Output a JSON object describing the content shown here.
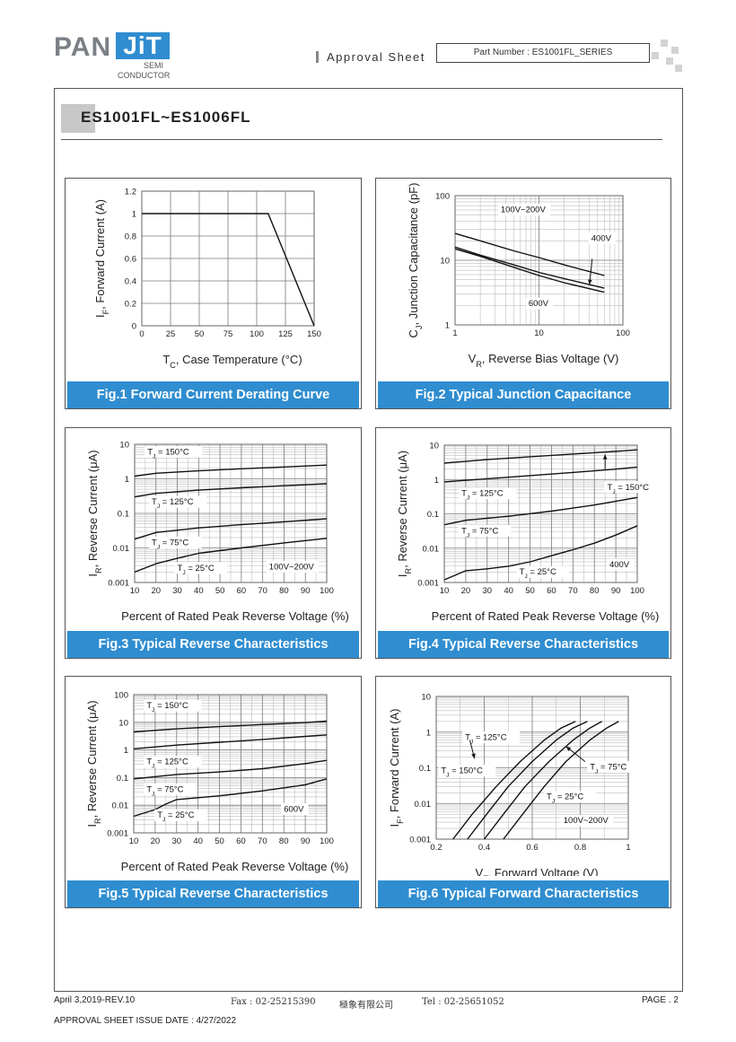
{
  "header": {
    "logo_main": "PAN",
    "logo_accent": "JiT",
    "logo_sub1": "SEMI",
    "logo_sub2": "CONDUCTOR",
    "approval": "Approval Sheet",
    "part_number": "Part Number : ES1001FL_SERIES"
  },
  "doc_title": "ES1001FL~ES1006FL",
  "footer": {
    "date": "April 3,2019-REV.10",
    "fax": "Fax : 02-25215390",
    "company": "極象有限公司",
    "tel": "Tel : 02-25651052",
    "page": "PAGE . 2",
    "issue": "APPROVAL SHEET ISSUE DATE : 4/27/2022"
  },
  "colors": {
    "accent": "#2f8dd0",
    "line": "#222222"
  },
  "chart_data": [
    {
      "id": "fig1",
      "type": "line",
      "title": "Fig.1 Forward Current Derating Curve",
      "xlabel": "TC, Case Temperature (°C)",
      "ylabel": "IF, Forward Current (A)",
      "xlim": [
        0,
        150
      ],
      "ylim": [
        0,
        1.2
      ],
      "xticks": [
        0,
        25,
        50,
        75,
        100,
        125,
        150
      ],
      "xtick_labels": [
        "0",
        "25",
        "50",
        "75",
        "100",
        "125",
        "150"
      ],
      "yticks": [
        0,
        0.2,
        0.4,
        0.6,
        0.8,
        1,
        1.2
      ],
      "ytick_labels": [
        "0",
        "0.2",
        "0.4",
        "0.6",
        "0.8",
        "1",
        "1.2"
      ],
      "grid": "major",
      "series": [
        {
          "x": [
            0,
            110,
            150
          ],
          "y": [
            1,
            1,
            0
          ]
        }
      ],
      "annotations": []
    },
    {
      "id": "fig2",
      "type": "line",
      "title": "Fig.2 Typical Junction Capacitance",
      "xlabel": "VR, Reverse Bias Voltage (V)",
      "ylabel": "CJ, Junction Capacitance (pF)",
      "xscale": "log",
      "yscale": "log",
      "xlim": [
        1,
        100
      ],
      "ylim": [
        1,
        100
      ],
      "xticks": [
        1,
        10,
        100
      ],
      "xtick_labels": [
        "1",
        "10",
        "100"
      ],
      "yticks": [
        1,
        10,
        100
      ],
      "ytick_labels": [
        "1",
        "10",
        "100"
      ],
      "grid": "log-minor",
      "series": [
        {
          "name": "100V~200V",
          "x": [
            1,
            2,
            5,
            10,
            20,
            60
          ],
          "y": [
            26,
            20,
            14,
            11,
            8.5,
            5.8
          ]
        },
        {
          "name": "400V",
          "x": [
            1,
            2,
            5,
            10,
            20,
            60
          ],
          "y": [
            16,
            12,
            8.5,
            6.5,
            5.2,
            3.7
          ]
        },
        {
          "name": "600V",
          "x": [
            1,
            2,
            5,
            10,
            20,
            60
          ],
          "y": [
            15,
            11.5,
            7.8,
            5.8,
            4.5,
            3.2
          ]
        }
      ],
      "annotations": [
        {
          "text": "100V~200V",
          "x": 3.5,
          "y": 55
        },
        {
          "text": "400V",
          "x": 42,
          "y": 20
        },
        {
          "text": "600V",
          "x": 7.5,
          "y": 1.95
        }
      ]
    },
    {
      "id": "fig3",
      "type": "line",
      "title": "Fig.3 Typical Reverse Characteristics",
      "xlabel": "Percent of Rated Peak Reverse Voltage (%)",
      "ylabel": "IR, Reverse Current (μA)",
      "yscale": "log",
      "xlim": [
        10,
        100
      ],
      "ylim": [
        0.001,
        10
      ],
      "xticks": [
        10,
        20,
        30,
        40,
        50,
        60,
        70,
        80,
        90,
        100
      ],
      "xtick_labels": [
        "10",
        "20",
        "30",
        "40",
        "50",
        "60",
        "70",
        "80",
        "90",
        "100"
      ],
      "yticks": [
        0.001,
        0.01,
        0.1,
        1,
        10
      ],
      "ytick_labels": [
        "0.001",
        "0.01",
        "0.1",
        "1",
        "10"
      ],
      "grid": "log-minor",
      "series": [
        {
          "name": "TJ = 150°C",
          "x": [
            10,
            20,
            40,
            60,
            80,
            100
          ],
          "y": [
            1.2,
            1.45,
            1.7,
            1.95,
            2.2,
            2.5
          ]
        },
        {
          "name": "TJ = 125°C",
          "x": [
            10,
            20,
            40,
            60,
            80,
            100
          ],
          "y": [
            0.3,
            0.38,
            0.47,
            0.55,
            0.63,
            0.72
          ]
        },
        {
          "name": "TJ = 75°C",
          "x": [
            10,
            20,
            40,
            60,
            80,
            100
          ],
          "y": [
            0.018,
            0.028,
            0.038,
            0.047,
            0.057,
            0.07
          ]
        },
        {
          "name": "TJ = 25°C",
          "x": [
            10,
            20,
            30,
            40,
            60,
            80,
            100
          ],
          "y": [
            0.002,
            0.0035,
            0.005,
            0.007,
            0.01,
            0.014,
            0.019
          ]
        }
      ],
      "annotations": [
        {
          "text": "TJ = 150°C",
          "x": 16,
          "y": 5.0
        },
        {
          "text": "TJ = 125°C",
          "x": 18,
          "y": 0.18
        },
        {
          "text": "TJ = 75°C",
          "x": 18,
          "y": 0.012
        },
        {
          "text": "TJ = 25°C",
          "x": 30,
          "y": 0.0022
        },
        {
          "text": "100V~200V",
          "x": 73,
          "y": 0.0024
        }
      ]
    },
    {
      "id": "fig4",
      "type": "line",
      "title": "Fig.4 Typical Reverse Characteristics",
      "xlabel": "Percent of Rated Peak Reverse Voltage (%)",
      "ylabel": "IR, Reverse Current (μA)",
      "yscale": "log",
      "xlim": [
        10,
        100
      ],
      "ylim": [
        0.001,
        10
      ],
      "xticks": [
        10,
        20,
        30,
        40,
        50,
        60,
        70,
        80,
        90,
        100
      ],
      "xtick_labels": [
        "10",
        "20",
        "30",
        "40",
        "50",
        "60",
        "70",
        "80",
        "90",
        "100"
      ],
      "yticks": [
        0.001,
        0.01,
        0.1,
        1,
        10
      ],
      "ytick_labels": [
        "0.001",
        "0.01",
        "0.1",
        "1",
        "10"
      ],
      "grid": "log-minor",
      "series": [
        {
          "name": "TJ = 150°C",
          "x": [
            10,
            30,
            50,
            70,
            90,
            100
          ],
          "y": [
            3.0,
            3.8,
            4.6,
            5.5,
            6.6,
            7.3
          ]
        },
        {
          "name": "TJ = 125°C",
          "x": [
            10,
            30,
            50,
            70,
            90,
            100
          ],
          "y": [
            0.85,
            1.05,
            1.3,
            1.6,
            2.0,
            2.3
          ]
        },
        {
          "name": "TJ = 75°C",
          "x": [
            10,
            20,
            40,
            60,
            80,
            100
          ],
          "y": [
            0.048,
            0.065,
            0.085,
            0.12,
            0.18,
            0.3
          ]
        },
        {
          "name": "TJ = 25°C",
          "x": [
            10,
            20,
            30,
            40,
            50,
            60,
            70,
            80,
            90,
            100
          ],
          "y": [
            0.0012,
            0.0022,
            0.0025,
            0.003,
            0.004,
            0.006,
            0.009,
            0.014,
            0.024,
            0.045
          ]
        }
      ],
      "annotations": [
        {
          "text": "TJ = 150°C",
          "x": 86,
          "y": 0.5
        },
        {
          "text": "TJ = 125°C",
          "x": 18,
          "y": 0.33
        },
        {
          "text": "TJ = 75°C",
          "x": 18,
          "y": 0.027
        },
        {
          "text": "TJ = 25°C",
          "x": 45,
          "y": 0.0017
        },
        {
          "text": "400V",
          "x": 87,
          "y": 0.0028
        }
      ]
    },
    {
      "id": "fig5",
      "type": "line",
      "title": "Fig.5 Typical Reverse Characteristics",
      "xlabel": "Percent of Rated Peak Reverse Voltage (%)",
      "ylabel": "IR, Reverse Current (μA)",
      "yscale": "log",
      "xlim": [
        10,
        100
      ],
      "ylim": [
        0.001,
        100
      ],
      "xticks": [
        10,
        20,
        30,
        40,
        50,
        60,
        70,
        80,
        90,
        100
      ],
      "xtick_labels": [
        "10",
        "20",
        "30",
        "40",
        "50",
        "60",
        "70",
        "80",
        "90",
        "100"
      ],
      "yticks": [
        0.001,
        0.01,
        0.1,
        1,
        10,
        100
      ],
      "ytick_labels": [
        "0.001",
        "0.01",
        "0.1",
        "1",
        "10",
        "100"
      ],
      "grid": "log-minor",
      "series": [
        {
          "name": "TJ = 150°C",
          "x": [
            10,
            30,
            50,
            70,
            90,
            100
          ],
          "y": [
            4.5,
            5.8,
            7.0,
            8.3,
            9.8,
            11
          ]
        },
        {
          "name": "TJ = 125°C",
          "x": [
            10,
            30,
            50,
            70,
            90,
            100
          ],
          "y": [
            1.1,
            1.5,
            1.9,
            2.4,
            3.1,
            3.5
          ]
        },
        {
          "name": "TJ = 75°C",
          "x": [
            10,
            30,
            50,
            70,
            90,
            100
          ],
          "y": [
            0.09,
            0.13,
            0.16,
            0.21,
            0.32,
            0.42
          ]
        },
        {
          "name": "TJ = 25°C",
          "x": [
            10,
            20,
            25,
            30,
            50,
            70,
            90,
            100
          ],
          "y": [
            0.004,
            0.007,
            0.011,
            0.016,
            0.022,
            0.033,
            0.055,
            0.09
          ]
        }
      ],
      "annotations": [
        {
          "text": "TJ = 150°C",
          "x": 16,
          "y": 32
        },
        {
          "text": "TJ = 125°C",
          "x": 16,
          "y": 0.3
        },
        {
          "text": "TJ = 75°C",
          "x": 16,
          "y": 0.03
        },
        {
          "text": "TJ = 25°C",
          "x": 21,
          "y": 0.0035
        },
        {
          "text": "600V",
          "x": 80,
          "y": 0.0058
        }
      ]
    },
    {
      "id": "fig6",
      "type": "line",
      "title": "Fig.6 Typical Forward Characteristics",
      "xlabel": "VF, Forward Voltage (V)",
      "ylabel": "IF, Forward Current (A)",
      "yscale": "log",
      "xlim": [
        0.2,
        1.0
      ],
      "ylim": [
        0.001,
        10
      ],
      "xticks": [
        0.2,
        0.4,
        0.6,
        0.8,
        1.0
      ],
      "xtick_labels": [
        "0.2",
        "0.4",
        "0.6",
        "0.8",
        "1"
      ],
      "yticks": [
        0.001,
        0.01,
        0.1,
        1,
        10
      ],
      "ytick_labels": [
        "0.001",
        "0.01",
        "0.1",
        "1",
        "10"
      ],
      "grid": "log-minor",
      "series": [
        {
          "name": "TJ = 150°C",
          "x": [
            0.27,
            0.35,
            0.45,
            0.55,
            0.65,
            0.72,
            0.78
          ],
          "y": [
            0.001,
            0.005,
            0.03,
            0.15,
            0.6,
            1.3,
            2
          ]
        },
        {
          "name": "TJ = 125°C",
          "x": [
            0.33,
            0.41,
            0.5,
            0.6,
            0.7,
            0.77,
            0.83
          ],
          "y": [
            0.001,
            0.005,
            0.03,
            0.15,
            0.6,
            1.3,
            2
          ]
        },
        {
          "name": "TJ = 75°C",
          "x": [
            0.4,
            0.48,
            0.57,
            0.67,
            0.77,
            0.84,
            0.89
          ],
          "y": [
            0.001,
            0.005,
            0.03,
            0.15,
            0.6,
            1.3,
            2
          ]
        },
        {
          "name": "TJ = 25°C",
          "x": [
            0.48,
            0.56,
            0.65,
            0.74,
            0.84,
            0.91,
            0.96
          ],
          "y": [
            0.001,
            0.005,
            0.03,
            0.15,
            0.6,
            1.3,
            2
          ]
        }
      ],
      "annotations": [
        {
          "text": "TJ = 125°C",
          "x": 0.32,
          "y": 0.6
        },
        {
          "text": "TJ = 150°C",
          "x": 0.22,
          "y": 0.07
        },
        {
          "text": "TJ = 75°C",
          "x": 0.84,
          "y": 0.09
        },
        {
          "text": "TJ = 25°C",
          "x": 0.66,
          "y": 0.013
        },
        {
          "text": "100V~200V",
          "x": 0.73,
          "y": 0.0028
        }
      ]
    }
  ]
}
